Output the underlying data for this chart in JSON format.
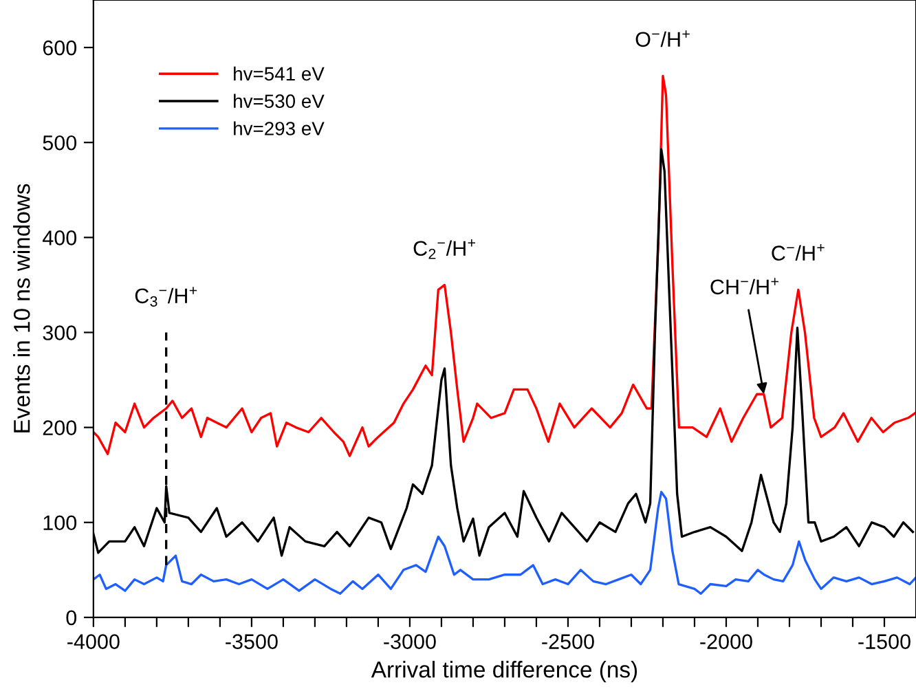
{
  "chart_data": {
    "type": "line",
    "xlabel": "Arrival time difference (ns)",
    "ylabel": "Events in 10 ns windows",
    "xlim": [
      -4000,
      -1400
    ],
    "ylim": [
      0,
      650
    ],
    "xticks": [
      -4000,
      {
        "value": -3900,
        "label": null
      },
      {
        "value": -3800,
        "label": null
      },
      {
        "value": -3700,
        "label": null
      },
      {
        "value": -3600,
        "label": null
      },
      -3500,
      {
        "value": -3400,
        "label": null
      },
      {
        "value": -3300,
        "label": null
      },
      {
        "value": -3200,
        "label": null
      },
      {
        "value": -3100,
        "label": null
      },
      -3000,
      {
        "value": -2900,
        "label": null
      },
      {
        "value": -2800,
        "label": null
      },
      {
        "value": -2700,
        "label": null
      },
      {
        "value": -2600,
        "label": null
      },
      -2500,
      {
        "value": -2400,
        "label": null
      },
      {
        "value": -2300,
        "label": null
      },
      {
        "value": -2200,
        "label": null
      },
      {
        "value": -2100,
        "label": null
      },
      -2000,
      {
        "value": -1900,
        "label": null
      },
      {
        "value": -1800,
        "label": null
      },
      {
        "value": -1700,
        "label": null
      },
      {
        "value": -1600,
        "label": null
      },
      -1500
    ],
    "yticks": [
      0,
      100,
      200,
      300,
      400,
      500,
      600
    ],
    "grid": false,
    "legend": "top left",
    "line_style": "solid",
    "marker": "none",
    "series": [
      {
        "name": "hv=541 eV",
        "color": "#ff0000",
        "x": [
          -4000,
          -3985,
          -3955,
          -3930,
          -3900,
          -3870,
          -3840,
          -3810,
          -3790,
          -3770,
          -3750,
          -3720,
          -3690,
          -3660,
          -3640,
          -3610,
          -3580,
          -3530,
          -3500,
          -3470,
          -3440,
          -3420,
          -3390,
          -3360,
          -3320,
          -3280,
          -3240,
          -3210,
          -3190,
          -3150,
          -3130,
          -3100,
          -3050,
          -3020,
          -2990,
          -2950,
          -2930,
          -2910,
          -2890,
          -2870,
          -2850,
          -2830,
          -2800,
          -2787,
          -2743,
          -2700,
          -2671,
          -2628,
          -2600,
          -2562,
          -2526,
          -2480,
          -2425,
          -2367,
          -2330,
          -2294,
          -2251,
          -2236,
          -2214,
          -2200,
          -2190,
          -2171,
          -2149,
          -2106,
          -2062,
          -2019,
          -1983,
          -1946,
          -1903,
          -1881,
          -1859,
          -1823,
          -1794,
          -1772,
          -1751,
          -1722,
          -1700,
          -1657,
          -1629,
          -1584,
          -1541,
          -1504,
          -1468,
          -1425,
          -1403
        ],
        "values": [
          195,
          190,
          172,
          205,
          195,
          225,
          200,
          210,
          215,
          220,
          228,
          210,
          220,
          190,
          210,
          205,
          200,
          220,
          195,
          210,
          215,
          180,
          205,
          200,
          195,
          210,
          195,
          185,
          170,
          200,
          180,
          190,
          205,
          225,
          240,
          265,
          255,
          345,
          350,
          300,
          240,
          185,
          210,
          225,
          210,
          215,
          240,
          240,
          220,
          185,
          225,
          200,
          220,
          200,
          215,
          245,
          220,
          220,
          400,
          570,
          550,
          380,
          200,
          200,
          190,
          220,
          185,
          210,
          235,
          235,
          200,
          210,
          300,
          345,
          300,
          210,
          190,
          200,
          215,
          185,
          210,
          195,
          205,
          210,
          215
        ]
      },
      {
        "name": "hv=530 eV",
        "color": "#000000",
        "x": [
          -4000,
          -3985,
          -3950,
          -3900,
          -3870,
          -3840,
          -3800,
          -3775,
          -3770,
          -3760,
          -3700,
          -3660,
          -3610,
          -3580,
          -3530,
          -3480,
          -3430,
          -3405,
          -3380,
          -3330,
          -3270,
          -3230,
          -3190,
          -3130,
          -3090,
          -3060,
          -3010,
          -2990,
          -2960,
          -2930,
          -2900,
          -2890,
          -2870,
          -2850,
          -2830,
          -2800,
          -2780,
          -2750,
          -2700,
          -2660,
          -2640,
          -2600,
          -2560,
          -2520,
          -2480,
          -2440,
          -2400,
          -2350,
          -2310,
          -2285,
          -2255,
          -2240,
          -2225,
          -2205,
          -2195,
          -2175,
          -2155,
          -2140,
          -2100,
          -2050,
          -2000,
          -1950,
          -1920,
          -1890,
          -1870,
          -1850,
          -1830,
          -1810,
          -1790,
          -1775,
          -1760,
          -1740,
          -1720,
          -1700,
          -1660,
          -1620,
          -1580,
          -1540,
          -1500,
          -1470,
          -1440,
          -1410
        ],
        "values": [
          88,
          68,
          80,
          80,
          95,
          75,
          115,
          100,
          138,
          110,
          105,
          90,
          115,
          85,
          100,
          80,
          105,
          65,
          95,
          80,
          75,
          90,
          75,
          105,
          100,
          72,
          115,
          140,
          130,
          160,
          250,
          262,
          160,
          115,
          80,
          104,
          65,
          95,
          110,
          85,
          133,
          105,
          80,
          110,
          95,
          80,
          100,
          90,
          120,
          130,
          100,
          120,
          300,
          493,
          470,
          300,
          130,
          85,
          90,
          95,
          85,
          70,
          100,
          150,
          125,
          100,
          90,
          120,
          200,
          305,
          220,
          100,
          100,
          80,
          85,
          95,
          75,
          100,
          95,
          85,
          100,
          90
        ]
      },
      {
        "name": "hv=293 eV",
        "color": "#1f5fff",
        "x": [
          -4000,
          -3980,
          -3960,
          -3930,
          -3900,
          -3870,
          -3840,
          -3800,
          -3780,
          -3770,
          -3740,
          -3720,
          -3690,
          -3660,
          -3620,
          -3580,
          -3540,
          -3500,
          -3450,
          -3400,
          -3350,
          -3300,
          -3250,
          -3220,
          -3180,
          -3150,
          -3100,
          -3060,
          -3020,
          -2980,
          -2950,
          -2910,
          -2890,
          -2860,
          -2840,
          -2800,
          -2750,
          -2700,
          -2650,
          -2610,
          -2580,
          -2540,
          -2500,
          -2460,
          -2420,
          -2380,
          -2340,
          -2300,
          -2270,
          -2240,
          -2215,
          -2205,
          -2190,
          -2170,
          -2150,
          -2100,
          -2080,
          -2050,
          -2000,
          -1970,
          -1930,
          -1900,
          -1880,
          -1850,
          -1820,
          -1790,
          -1770,
          -1750,
          -1720,
          -1700,
          -1660,
          -1620,
          -1580,
          -1540,
          -1500,
          -1460,
          -1420,
          -1400
        ],
        "values": [
          40,
          45,
          30,
          35,
          28,
          40,
          35,
          42,
          38,
          55,
          65,
          38,
          35,
          45,
          38,
          40,
          35,
          40,
          30,
          40,
          28,
          40,
          30,
          25,
          38,
          30,
          45,
          30,
          50,
          55,
          48,
          85,
          75,
          45,
          50,
          40,
          40,
          45,
          45,
          55,
          35,
          40,
          35,
          50,
          38,
          35,
          40,
          45,
          35,
          50,
          115,
          132,
          125,
          70,
          35,
          30,
          25,
          35,
          33,
          40,
          38,
          50,
          45,
          40,
          38,
          55,
          80,
          60,
          40,
          30,
          42,
          38,
          42,
          35,
          38,
          42,
          35,
          42
        ]
      },
      {
        "type": "line",
        "color": "#000000",
        "line_style": "dashed",
        "x": [
          -3770,
          -3770
        ],
        "values": [
          55,
          300
        ]
      }
    ],
    "annotations": [
      {
        "text": "C$_{3}$$^{−}$/H$^{+}$",
        "x": -3770,
        "y": 300
      },
      {
        "text": "C$_{2}$$^{−}$/H$^{+}$",
        "x": -2890,
        "y": 350
      },
      {
        "text": "O$^{−}$/H$^{+}$",
        "x": -2200,
        "y": 570
      },
      {
        "text": "CH$^{−}$/H$^{+}$",
        "x": -1881,
        "y": 235
      },
      {
        "text": "C$^{−}$/H$^{+}$",
        "x": -1772,
        "y": 345
      }
    ]
  }
}
